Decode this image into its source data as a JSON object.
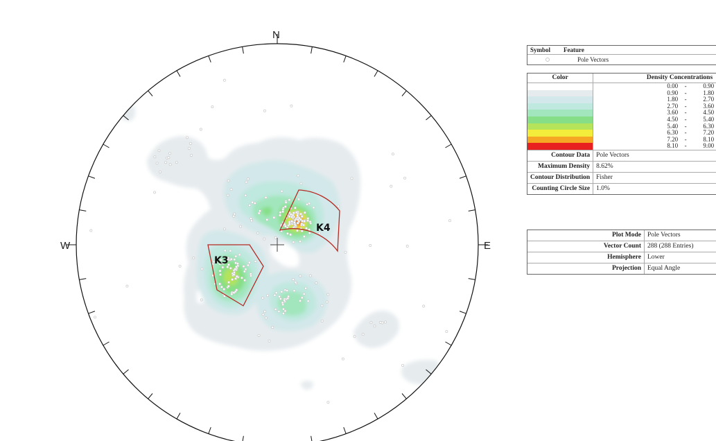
{
  "diagram": {
    "directions": {
      "north": "N",
      "east": "E",
      "west": "W"
    },
    "sets": [
      {
        "label": "K4"
      },
      {
        "label": "K3"
      }
    ]
  },
  "legend": {
    "symbol_header": "Symbol",
    "feature_header": "Feature",
    "symbol_item": {
      "feature": "Pole Vectors",
      "symbol_color": "#c9c9c9"
    },
    "color_header": "Color",
    "density_header": "Density Concentrations",
    "density_ranges": [
      {
        "low": "0.00",
        "high": "0.90",
        "color": "#ffffff"
      },
      {
        "low": "0.90",
        "high": "1.80",
        "color": "#e6ebee"
      },
      {
        "low": "1.80",
        "high": "2.70",
        "color": "#d3e8ea"
      },
      {
        "low": "2.70",
        "high": "3.60",
        "color": "#bfe8df"
      },
      {
        "low": "3.60",
        "high": "4.50",
        "color": "#a2e6bd"
      },
      {
        "low": "4.50",
        "high": "5.40",
        "color": "#86df86"
      },
      {
        "low": "5.40",
        "high": "6.30",
        "color": "#b5e35a"
      },
      {
        "low": "6.30",
        "high": "7.20",
        "color": "#f4ec3a"
      },
      {
        "low": "7.20",
        "high": "8.10",
        "color": "#f5a623"
      },
      {
        "low": "8.10",
        "high": "9.00",
        "color": "#e8201f"
      }
    ],
    "range_separator": "-",
    "contour_info": [
      {
        "key": "Contour Data",
        "value": "Pole Vectors"
      },
      {
        "key": "Maximum Density",
        "value": "8.62%"
      },
      {
        "key": "Contour Distribution",
        "value": "Fisher"
      },
      {
        "key": "Counting Circle Size",
        "value": "1.0%"
      }
    ],
    "plot_info": [
      {
        "key": "Plot Mode",
        "value": "Pole Vectors"
      },
      {
        "key": "Vector Count",
        "value": "288 (288 Entries)"
      },
      {
        "key": "Hemisphere",
        "value": "Lower"
      },
      {
        "key": "Projection",
        "value": "Equal Angle"
      }
    ]
  }
}
